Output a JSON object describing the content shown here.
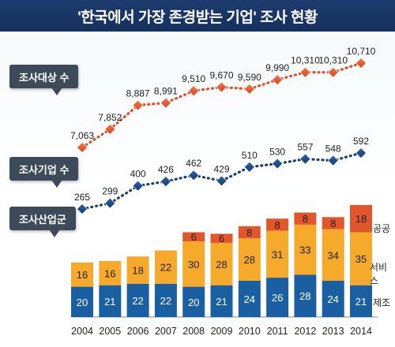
{
  "title": "'한국에서 가장 존경받는 기업' 조사 현황",
  "labels": {
    "targets": "조사대상 수",
    "companies": "조사기업 수",
    "industries": "조사산업군"
  },
  "colors": {
    "title_bg": "#1d3b6e",
    "line_red": "#e04f2a",
    "marker_red": "#e5532d",
    "line_navy": "#1a3d70",
    "marker_navy": "#1f4a85",
    "bar_manufacturing": "#1b5fa3",
    "bar_service": "#f5aa2b",
    "bar_public": "#e1562a"
  },
  "chart_data": {
    "type": "bar",
    "categories": [
      "2004",
      "2005",
      "2006",
      "2007",
      "2008",
      "2009",
      "2010",
      "2011",
      "2012",
      "2013",
      "2014"
    ],
    "lines": [
      {
        "name": "조사대상 수",
        "values": [
          7063,
          7852,
          8887,
          8991,
          9510,
          9670,
          9590,
          9990,
          10310,
          10310,
          10710
        ],
        "labels": [
          "7,063",
          "7,852",
          "8,887",
          "8,991",
          "9,510",
          "9,670",
          "9,590",
          "9,990",
          "10,310",
          "10,310",
          "10,710"
        ]
      },
      {
        "name": "조사기업 수",
        "values": [
          265,
          299,
          400,
          426,
          462,
          429,
          510,
          530,
          557,
          548,
          592
        ],
        "labels": [
          "265",
          "299",
          "400",
          "426",
          "462",
          "429",
          "510",
          "530",
          "557",
          "548",
          "592"
        ]
      }
    ],
    "series": [
      {
        "name": "제조",
        "values": [
          20,
          21,
          22,
          22,
          20,
          21,
          24,
          26,
          28,
          24,
          21
        ]
      },
      {
        "name": "서비스",
        "values": [
          16,
          16,
          18,
          22,
          30,
          28,
          28,
          31,
          33,
          34,
          35
        ]
      },
      {
        "name": "공공",
        "values": [
          0,
          0,
          0,
          0,
          6,
          6,
          8,
          8,
          8,
          8,
          18
        ]
      }
    ],
    "stacked": true
  }
}
